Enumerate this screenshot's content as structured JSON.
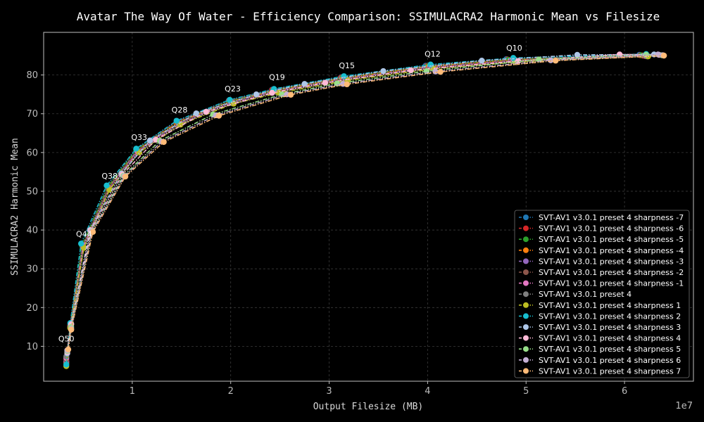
{
  "chart_data": {
    "type": "line",
    "title": "Avatar The Way Of Water - Efficiency Comparison: SSIMULACRA2 Harmonic Mean vs Filesize",
    "xlabel": "Output Filesize (MB)",
    "ylabel": "SSIMULACRA2 Harmonic Mean",
    "x_offset_label": "1e7",
    "xlim": [
      0.1,
      6.7
    ],
    "ylim": [
      1,
      91
    ],
    "xticks": [
      1,
      2,
      3,
      4,
      5,
      6
    ],
    "yticks": [
      10,
      20,
      30,
      40,
      50,
      60,
      70,
      80
    ],
    "grid": true,
    "legend_position": "lower-right",
    "q_annotations": [
      {
        "label": "Q50",
        "x": 0.33,
        "y": 10
      },
      {
        "label": "Q44",
        "x": 0.51,
        "y": 37
      },
      {
        "label": "Q38",
        "x": 0.77,
        "y": 52
      },
      {
        "label": "Q33",
        "x": 1.07,
        "y": 62
      },
      {
        "label": "Q28",
        "x": 1.48,
        "y": 69
      },
      {
        "label": "Q23",
        "x": 2.02,
        "y": 74.5
      },
      {
        "label": "Q19",
        "x": 2.47,
        "y": 77.5
      },
      {
        "label": "Q15",
        "x": 3.18,
        "y": 80.5
      },
      {
        "label": "Q12",
        "x": 4.05,
        "y": 83.5
      },
      {
        "label": "Q10",
        "x": 4.88,
        "y": 85
      }
    ],
    "series": [
      {
        "name": "SVT-AV1 v3.0.1 preset 4 sharpness -7",
        "color": "#1f77b4",
        "x": [
          0.33,
          0.37,
          0.49,
          0.75,
          1.04,
          1.45,
          1.98,
          2.42,
          3.12,
          3.98,
          4.8,
          6.15
        ],
        "y": [
          5.5,
          15.5,
          36.2,
          51.2,
          60.8,
          68.0,
          73.4,
          76.2,
          79.4,
          82.4,
          84.1,
          85.2
        ]
      },
      {
        "name": "SVT-AV1 v3.0.1 preset 4 sharpness -6",
        "color": "#d62728",
        "x": [
          0.33,
          0.37,
          0.49,
          0.75,
          1.04,
          1.45,
          1.98,
          2.42,
          3.12,
          3.99,
          4.81,
          6.16
        ],
        "y": [
          5.6,
          15.4,
          36.1,
          51.1,
          60.7,
          67.9,
          73.3,
          76.1,
          79.3,
          82.3,
          84.0,
          85.1
        ]
      },
      {
        "name": "SVT-AV1 v3.0.1 preset 4 sharpness -5",
        "color": "#2ca02c",
        "x": [
          0.33,
          0.37,
          0.49,
          0.75,
          1.04,
          1.46,
          1.99,
          2.43,
          3.13,
          4.0,
          4.82,
          6.17
        ],
        "y": [
          5.7,
          15.3,
          36.0,
          51.0,
          60.6,
          67.8,
          73.2,
          76.0,
          79.2,
          82.2,
          83.9,
          85.1
        ]
      },
      {
        "name": "SVT-AV1 v3.0.1 preset 4 sharpness -4",
        "color": "#ff7f0e",
        "x": [
          0.33,
          0.37,
          0.5,
          0.76,
          1.05,
          1.46,
          2.0,
          2.44,
          3.14,
          4.01,
          4.84,
          6.19
        ],
        "y": [
          5.9,
          15.2,
          35.9,
          50.9,
          60.5,
          67.7,
          73.1,
          75.9,
          79.1,
          82.1,
          83.8,
          85.0
        ]
      },
      {
        "name": "SVT-AV1 v3.0.1 preset 4 sharpness -3",
        "color": "#9467bd",
        "x": [
          0.33,
          0.37,
          0.5,
          0.76,
          1.05,
          1.47,
          2.0,
          2.45,
          3.15,
          4.02,
          4.85,
          6.2
        ],
        "y": [
          6.2,
          15.1,
          35.8,
          50.8,
          60.4,
          67.6,
          73.0,
          75.8,
          79.0,
          82.0,
          83.7,
          85.0
        ]
      },
      {
        "name": "SVT-AV1 v3.0.1 preset 4 sharpness -2",
        "color": "#8c564b",
        "x": [
          0.33,
          0.37,
          0.5,
          0.76,
          1.06,
          1.47,
          2.01,
          2.46,
          3.16,
          4.03,
          4.86,
          6.21
        ],
        "y": [
          6.6,
          15.0,
          35.7,
          50.7,
          60.3,
          67.5,
          72.9,
          75.7,
          78.9,
          81.9,
          83.6,
          84.9
        ]
      },
      {
        "name": "SVT-AV1 v3.0.1 preset 4 sharpness -1",
        "color": "#e377c2",
        "x": [
          0.33,
          0.37,
          0.5,
          0.77,
          1.06,
          1.48,
          2.02,
          2.47,
          3.17,
          4.04,
          4.87,
          6.22
        ],
        "y": [
          7.0,
          14.9,
          35.6,
          50.6,
          60.2,
          67.4,
          72.8,
          75.6,
          78.8,
          81.8,
          83.5,
          84.9
        ]
      },
      {
        "name": "SVT-AV1 v3.0.1 preset 4",
        "color": "#7f7f7f",
        "x": [
          0.33,
          0.37,
          0.51,
          0.77,
          1.07,
          1.48,
          2.02,
          2.48,
          3.18,
          4.05,
          4.88,
          6.23
        ],
        "y": [
          7.4,
          14.8,
          35.5,
          50.5,
          60.1,
          67.3,
          72.7,
          75.5,
          78.7,
          81.7,
          83.4,
          84.8
        ]
      },
      {
        "name": "SVT-AV1 v3.0.1 preset 4 sharpness 1",
        "color": "#bcbd22",
        "x": [
          0.33,
          0.37,
          0.51,
          0.77,
          1.07,
          1.49,
          2.03,
          2.49,
          3.19,
          4.06,
          4.89,
          6.24
        ],
        "y": [
          4.9,
          14.7,
          35.4,
          50.4,
          60.0,
          67.2,
          72.6,
          75.4,
          78.6,
          81.6,
          83.3,
          84.8
        ]
      },
      {
        "name": "SVT-AV1 v3.0.1 preset 4 sharpness 2",
        "color": "#17becf",
        "x": [
          0.33,
          0.37,
          0.48,
          0.74,
          1.04,
          1.45,
          1.99,
          2.44,
          3.15,
          4.03,
          4.87,
          6.22
        ],
        "y": [
          5.3,
          16.0,
          36.5,
          51.5,
          61.0,
          68.2,
          73.6,
          76.4,
          79.7,
          82.7,
          84.4,
          85.4
        ]
      },
      {
        "name": "SVT-AV1 v3.0.1 preset 4 sharpness 3",
        "color": "#aec7e8",
        "x": [
          0.34,
          0.38,
          0.57,
          0.89,
          1.18,
          1.65,
          2.26,
          2.75,
          3.55,
          4.55,
          5.52,
          6.3
        ],
        "y": [
          8.2,
          15.8,
          40.0,
          54.6,
          63.1,
          70.1,
          75.0,
          77.7,
          81.0,
          83.7,
          85.2,
          85.3
        ]
      },
      {
        "name": "SVT-AV1 v3.0.1 preset 4 sharpness 4",
        "color": "#ffbbd7",
        "x": [
          0.34,
          0.38,
          0.58,
          0.9,
          1.24,
          1.75,
          2.42,
          2.96,
          3.83,
          4.92,
          5.95,
          6.35
        ],
        "y": [
          8.5,
          15.6,
          39.9,
          54.3,
          63.3,
          70.5,
          75.4,
          78.0,
          81.2,
          83.6,
          85.3,
          85.2
        ]
      },
      {
        "name": "SVT-AV1 v3.0.1 preset 4 sharpness 5",
        "color": "#98df8a",
        "x": [
          0.34,
          0.38,
          0.59,
          0.91,
          1.28,
          1.82,
          2.52,
          3.08,
          3.99,
          5.13,
          6.22,
          6.38
        ],
        "y": [
          8.8,
          15.0,
          39.7,
          54.0,
          63.0,
          69.8,
          75.0,
          77.8,
          81.0,
          84.0,
          85.2,
          85.1
        ]
      },
      {
        "name": "SVT-AV1 v3.0.1 preset 4 sharpness 6",
        "color": "#c5b0d5",
        "x": [
          0.34,
          0.38,
          0.59,
          0.92,
          1.3,
          1.85,
          2.57,
          3.14,
          4.08,
          5.25,
          6.34,
          6.39
        ],
        "y": [
          9.0,
          14.5,
          39.6,
          53.9,
          62.8,
          69.6,
          75.0,
          77.7,
          80.9,
          83.8,
          85.3,
          85.1
        ]
      },
      {
        "name": "SVT-AV1 v3.0.1 preset 4 sharpness 7",
        "color": "#ffbb78",
        "x": [
          0.35,
          0.38,
          0.6,
          0.93,
          1.32,
          1.88,
          2.61,
          3.18,
          4.13,
          5.3,
          6.4,
          6.4
        ],
        "y": [
          9.2,
          14.3,
          39.5,
          53.8,
          62.7,
          69.5,
          74.9,
          77.6,
          80.8,
          83.7,
          85.0,
          85.0
        ]
      }
    ]
  }
}
